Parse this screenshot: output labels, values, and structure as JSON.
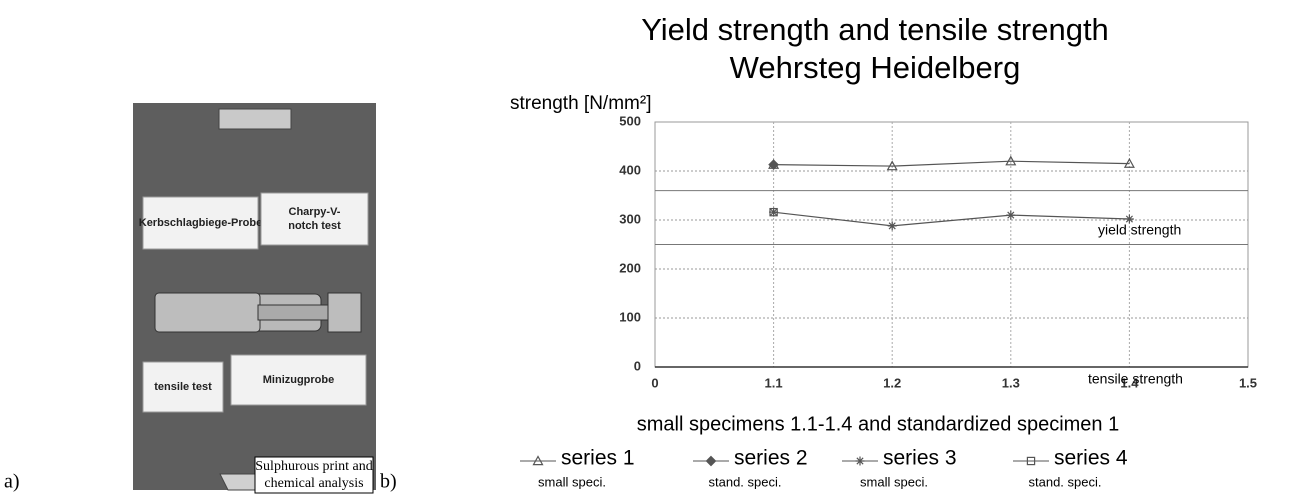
{
  "panel_a": {
    "label": "a)",
    "cards": [
      [
        "Kerbschlagbiege-Probe"
      ],
      [
        "Charpy-V-",
        "notch test"
      ],
      [
        "tensile test"
      ],
      [
        "Minizugprobe"
      ]
    ],
    "note": [
      "Sulphurous print and",
      "chemical analysis"
    ]
  },
  "panel_b_label": "b)",
  "chart_data": {
    "type": "line",
    "title": [
      "Yield strength and tensile strength",
      "Wehrsteg Heidelberg"
    ],
    "y_label": "strength [N/mm²]",
    "x_label": "small specimens 1.1-1.4 and standardized specimen 1",
    "categories": [
      "0",
      "1.1",
      "1.2",
      "1.3",
      "1.4",
      "1.5"
    ],
    "series": [
      {
        "name": "series 1",
        "note": "small speci.",
        "marker": "triangle",
        "color": "#555555",
        "values": [
          null,
          413,
          410,
          420,
          415,
          null
        ]
      },
      {
        "name": "series 2",
        "note": "stand. speci.",
        "marker": "diamond",
        "color": "#555555",
        "values": [
          null,
          413,
          null,
          null,
          null,
          null
        ]
      },
      {
        "name": "series 3",
        "note": "small speci.",
        "marker": "asterisk",
        "color": "#555555",
        "values": [
          null,
          316,
          288,
          310,
          302,
          null
        ]
      },
      {
        "name": "series 4",
        "note": "stand. speci.",
        "marker": "square",
        "color": "#555555",
        "values": [
          null,
          316,
          null,
          null,
          null,
          null
        ]
      }
    ],
    "reference_lines": [
      360,
      250
    ],
    "annotations": [
      "tensile strength",
      "yield strength"
    ],
    "ylim": [
      0,
      500
    ],
    "yticks": [
      0,
      100,
      200,
      300,
      400,
      500
    ],
    "grid": true
  }
}
